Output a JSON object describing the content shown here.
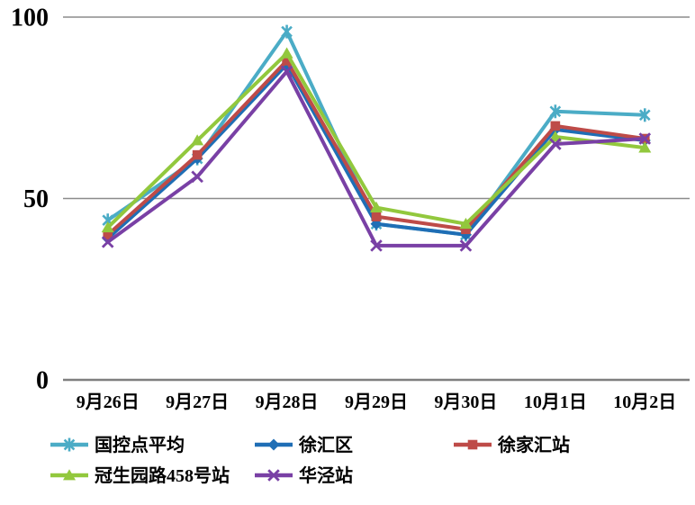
{
  "chart_data": {
    "type": "line",
    "title": "",
    "xlabel": "",
    "ylabel": "",
    "categories": [
      "9月26日",
      "9月27日",
      "9月28日",
      "9月29日",
      "9月30日",
      "10月1日",
      "10月2日"
    ],
    "series": [
      {
        "name": "国控点平均",
        "color": "#4BACC6",
        "marker": "asterisk",
        "values": [
          44,
          61,
          96,
          43,
          40,
          74,
          73
        ]
      },
      {
        "name": "徐汇区",
        "color": "#1F6EB5",
        "marker": "diamond",
        "values": [
          39,
          61,
          87,
          43,
          40,
          69,
          66
        ]
      },
      {
        "name": "徐家汇站",
        "color": "#BE4B48",
        "marker": "square",
        "values": [
          40,
          62,
          88,
          45,
          41.5,
          70,
          66.5
        ]
      },
      {
        "name": "冠生园路458号站",
        "color": "#92C83D",
        "marker": "triangle",
        "values": [
          42,
          66,
          90,
          47.5,
          43,
          67,
          64
        ]
      },
      {
        "name": "华泾站",
        "color": "#7940A5",
        "marker": "x",
        "values": [
          38,
          56,
          85,
          37,
          37,
          65,
          66.5
        ]
      }
    ],
    "ylim": [
      0,
      100
    ],
    "yticks": [
      0,
      50,
      100
    ],
    "grid": true,
    "legend_position": "bottom",
    "colors": {
      "gridline": "#8C8C8C",
      "axis_line": "#7F7F7F",
      "text": "#000000",
      "background": "#FFFFFF"
    }
  }
}
